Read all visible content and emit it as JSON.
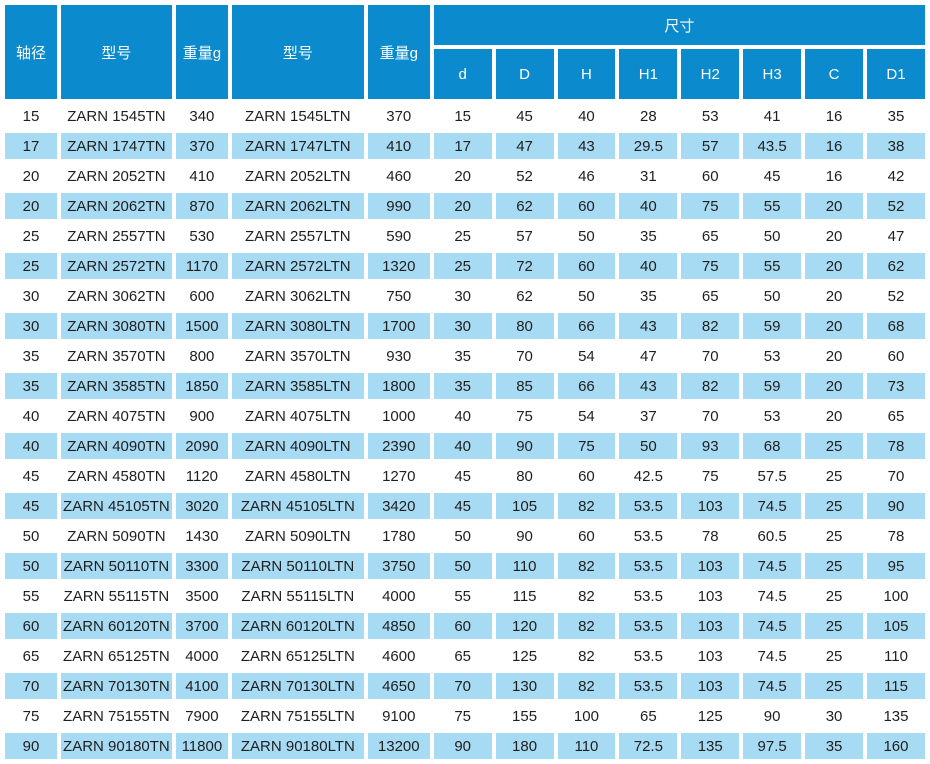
{
  "colors": {
    "header_bg": "#0b8bcd",
    "header_text": "#ffffff",
    "row_bg": "#ffffff",
    "row_alt_bg": "#a7daf3",
    "text": "#1f1f1f"
  },
  "table": {
    "header": {
      "left_columns": [
        "轴径",
        "型号",
        "重量g",
        "型号",
        "重量g"
      ],
      "size_group": "尺寸",
      "size_columns": [
        "d",
        "D",
        "H",
        "H1",
        "H2",
        "H3",
        "C",
        "D1"
      ]
    },
    "rows": [
      [
        15,
        "ZARN 1545TN",
        340,
        "ZARN 1545LTN",
        370,
        15,
        45,
        40,
        28,
        53,
        41,
        16,
        35
      ],
      [
        17,
        "ZARN 1747TN",
        370,
        "ZARN 1747LTN",
        410,
        17,
        47,
        43,
        29.5,
        57,
        43.5,
        16,
        38
      ],
      [
        20,
        "ZARN 2052TN",
        410,
        "ZARN 2052LTN",
        460,
        20,
        52,
        46,
        31,
        60,
        45,
        16,
        42
      ],
      [
        20,
        "ZARN 2062TN",
        870,
        "ZARN 2062LTN",
        990,
        20,
        62,
        60,
        40,
        75,
        55,
        20,
        52
      ],
      [
        25,
        "ZARN 2557TN",
        530,
        "ZARN 2557LTN",
        590,
        25,
        57,
        50,
        35,
        65,
        50,
        20,
        47
      ],
      [
        25,
        "ZARN 2572TN",
        1170,
        "ZARN 2572LTN",
        1320,
        25,
        72,
        60,
        40,
        75,
        55,
        20,
        62
      ],
      [
        30,
        "ZARN 3062TN",
        600,
        "ZARN 3062LTN",
        750,
        30,
        62,
        50,
        35,
        65,
        50,
        20,
        52
      ],
      [
        30,
        "ZARN 3080TN",
        1500,
        "ZARN 3080LTN",
        1700,
        30,
        80,
        66,
        43,
        82,
        59,
        20,
        68
      ],
      [
        35,
        "ZARN 3570TN",
        800,
        "ZARN 3570LTN",
        930,
        35,
        70,
        54,
        47,
        70,
        53,
        20,
        60
      ],
      [
        35,
        "ZARN 3585TN",
        1850,
        "ZARN 3585LTN",
        1800,
        35,
        85,
        66,
        43,
        82,
        59,
        20,
        73
      ],
      [
        40,
        "ZARN 4075TN",
        900,
        "ZARN 4075LTN",
        1000,
        40,
        75,
        54,
        37,
        70,
        53,
        20,
        65
      ],
      [
        40,
        "ZARN 4090TN",
        2090,
        "ZARN 4090LTN",
        2390,
        40,
        90,
        75,
        50,
        93,
        68,
        25,
        78
      ],
      [
        45,
        "ZARN 4580TN",
        1120,
        "ZARN 4580LTN",
        1270,
        45,
        80,
        60,
        42.5,
        75,
        57.5,
        25,
        70
      ],
      [
        45,
        "ZARN 45105TN",
        3020,
        "ZARN 45105LTN",
        3420,
        45,
        105,
        82,
        53.5,
        103,
        74.5,
        25,
        90
      ],
      [
        50,
        "ZARN 5090TN",
        1430,
        "ZARN 5090LTN",
        1780,
        50,
        90,
        60,
        53.5,
        78,
        60.5,
        25,
        78
      ],
      [
        50,
        "ZARN 50110TN",
        3300,
        "ZARN 50110LTN",
        3750,
        50,
        110,
        82,
        53.5,
        103,
        74.5,
        25,
        95
      ],
      [
        55,
        "ZARN 55115TN",
        3500,
        "ZARN 55115LTN",
        4000,
        55,
        115,
        82,
        53.5,
        103,
        74.5,
        25,
        100
      ],
      [
        60,
        "ZARN 60120TN",
        3700,
        "ZARN 60120LTN",
        4850,
        60,
        120,
        82,
        53.5,
        103,
        74.5,
        25,
        105
      ],
      [
        65,
        "ZARN 65125TN",
        4000,
        "ZARN 65125LTN",
        4600,
        65,
        125,
        82,
        53.5,
        103,
        74.5,
        25,
        110
      ],
      [
        70,
        "ZARN 70130TN",
        4100,
        "ZARN 70130LTN",
        4650,
        70,
        130,
        82,
        53.5,
        103,
        74.5,
        25,
        115
      ],
      [
        75,
        "ZARN 75155TN",
        7900,
        "ZARN 75155LTN",
        9100,
        75,
        155,
        100,
        65,
        125,
        90,
        30,
        135
      ],
      [
        90,
        "ZARN 90180TN",
        11800,
        "ZARN 90180LTN",
        13200,
        90,
        180,
        110,
        72.5,
        135,
        97.5,
        35,
        160
      ]
    ]
  }
}
